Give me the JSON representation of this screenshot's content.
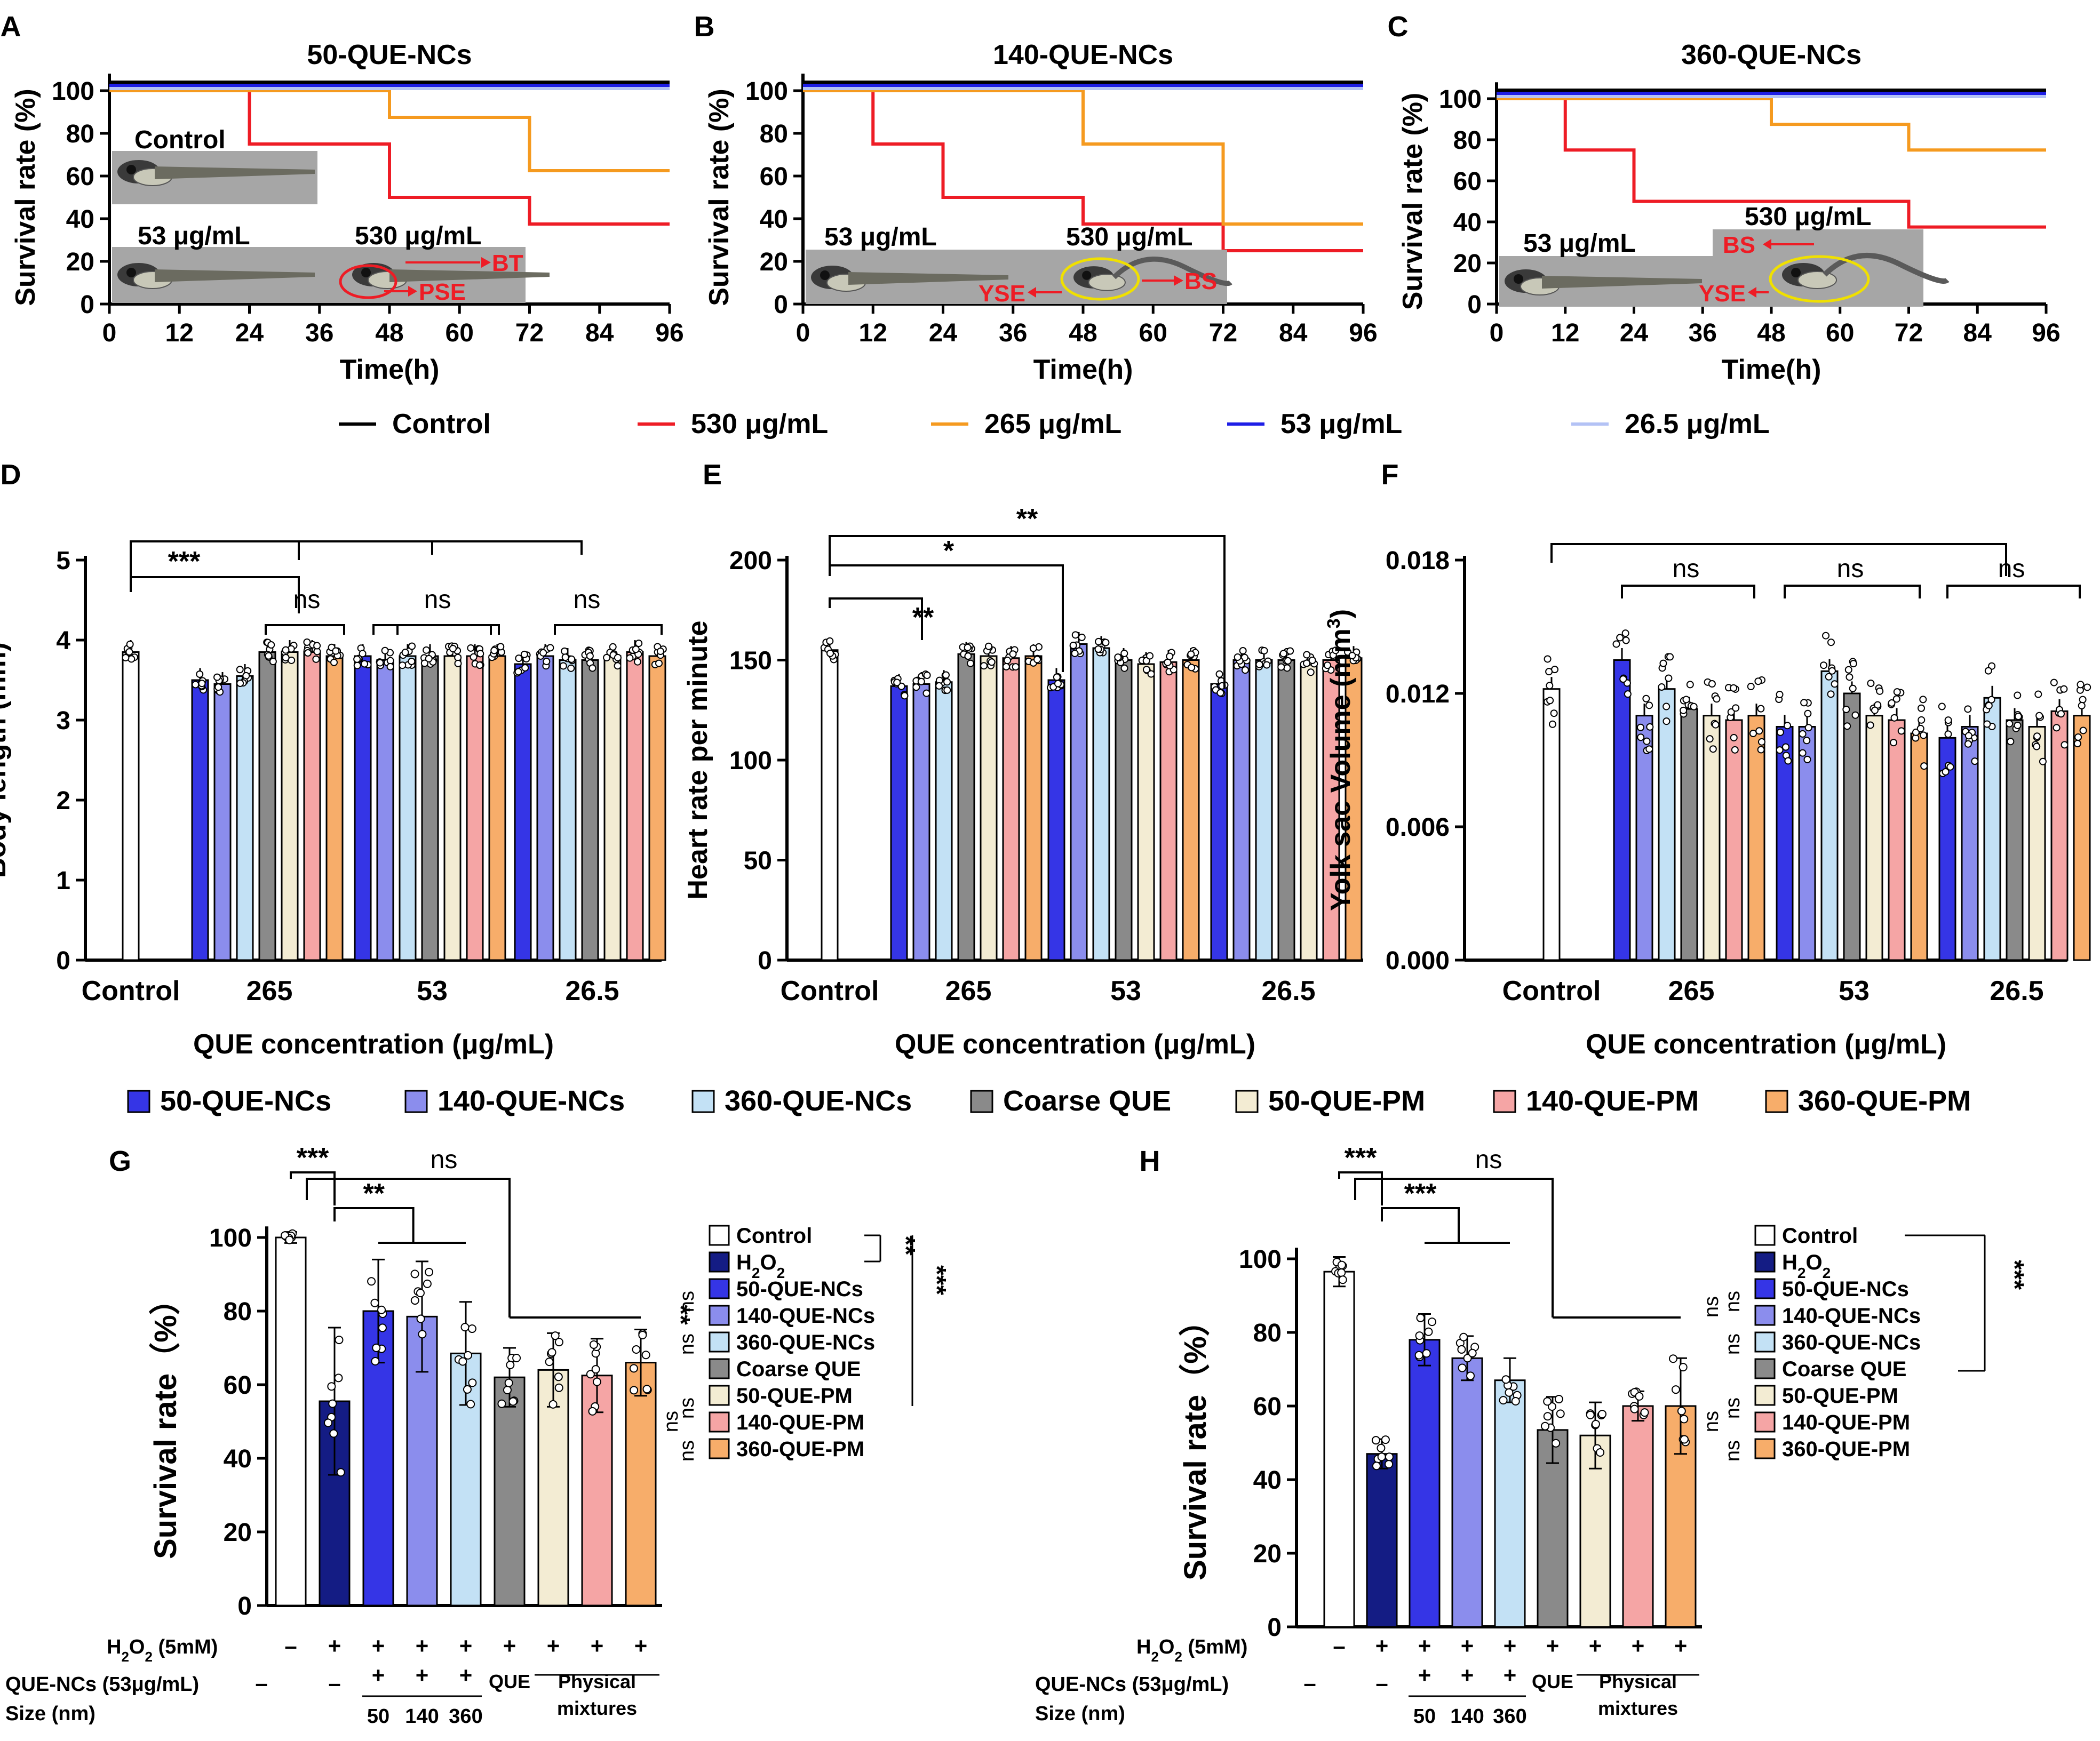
{
  "colors": {
    "control": "#ffffff",
    "c530": "#ee1c25",
    "c265": "#f59a1f",
    "c53": "#1e1ee6",
    "c26_5": "#b3c2f5",
    "NC50": "#3535e6",
    "NC140": "#8b8ded",
    "NC360": "#c3e1f5",
    "coarse": "#8a8a8a",
    "PM50": "#f3ecd3",
    "PM140": "#f5a5a5",
    "PM360": "#f7ad6a",
    "H2O2": "#141c84",
    "ann_red": "#ee1c25",
    "ellipse": "#f0e000",
    "photo_bg": "#a6a6a6",
    "axis": "#000000"
  },
  "survival_panels": [
    {
      "letter": "A",
      "title": "50-QUE-NCs",
      "xlabel": "Time(h)",
      "ylabel": "Survival rate (%)",
      "xticks": [
        "0",
        "12",
        "24",
        "36",
        "48",
        "60",
        "72",
        "84",
        "96"
      ],
      "yticks": [
        "0",
        "20",
        "40",
        "60",
        "80",
        "100"
      ],
      "photo_labels": [
        {
          "text": "Control"
        },
        {
          "text": "53 μg/mL"
        },
        {
          "text": "530 μg/mL"
        }
      ],
      "annotations": [
        {
          "text": "BT"
        },
        {
          "text": "PSE"
        }
      ]
    },
    {
      "letter": "B",
      "title": "140-QUE-NCs",
      "xlabel": "Time(h)",
      "ylabel": "Survival rate (%)",
      "xticks": [
        "0",
        "12",
        "24",
        "36",
        "48",
        "60",
        "72",
        "84",
        "96"
      ],
      "yticks": [
        "0",
        "20",
        "40",
        "60",
        "80",
        "100"
      ],
      "photo_labels": [
        {
          "text": "53 μg/mL"
        },
        {
          "text": "530 μg/mL"
        }
      ],
      "annotations": [
        {
          "text": "YSE"
        },
        {
          "text": "BS"
        }
      ]
    },
    {
      "letter": "C",
      "title": "360-QUE-NCs",
      "xlabel": "Time(h)",
      "ylabel": "Survival rate (%)",
      "xticks": [
        "0",
        "12",
        "24",
        "36",
        "48",
        "60",
        "72",
        "84",
        "96"
      ],
      "yticks": [
        "0",
        "20",
        "40",
        "60",
        "80",
        "100"
      ],
      "photo_labels": [
        {
          "text": "53 μg/mL"
        },
        {
          "text": "530 μg/mL"
        }
      ],
      "annotations": [
        {
          "text": "BS"
        },
        {
          "text": "YSE"
        }
      ]
    }
  ],
  "legend_top": [
    "Control",
    "530 μg/mL",
    "265 μg/mL",
    "53 μg/mL",
    "26.5 μg/mL"
  ],
  "bar_panels": [
    {
      "letter": "D",
      "ylabel": "Body length (mm)",
      "xlabel": "QUE concentration (μg/mL)",
      "groups": [
        "Control",
        "265",
        "53",
        "26.5"
      ],
      "yticks": [
        "0",
        "1",
        "2",
        "3",
        "4",
        "5"
      ],
      "sig": [
        "***",
        "ns",
        "ns",
        "ns"
      ]
    },
    {
      "letter": "E",
      "ylabel": "Heart rate per minute",
      "xlabel": "QUE concentration (μg/mL)",
      "groups": [
        "Control",
        "265",
        "53",
        "26.5"
      ],
      "yticks": [
        "0",
        "50",
        "100",
        "150",
        "200"
      ],
      "sig": [
        "**",
        "*",
        "**"
      ]
    },
    {
      "letter": "F",
      "ylabel": "Yolk sac Volume (mm",
      "ylabel_sup": "3",
      "ylabel_end": ")",
      "xlabel": "QUE concentration (μg/mL)",
      "groups": [
        "Control",
        "265",
        "53",
        "26.5"
      ],
      "yticks": [
        "0.000",
        "0.006",
        "0.012",
        "0.018"
      ],
      "sig": [
        "ns",
        "ns",
        "ns"
      ]
    }
  ],
  "legend_mid": [
    "50-QUE-NCs",
    "140-QUE-NCs",
    "360-QUE-NCs",
    "Coarse QUE",
    "50-QUE-PM",
    "140-QUE-PM",
    "360-QUE-PM"
  ],
  "h2o2_panels": [
    {
      "letter": "G",
      "ylabel": "Survival rate（%）",
      "yticks": [
        "0",
        "20",
        "40",
        "60",
        "80",
        "100"
      ],
      "sig": [
        "***",
        "**",
        "ns"
      ],
      "legend": [
        "Control",
        "H2O2",
        "50-QUE-NCs",
        "140-QUE-NCs",
        "360-QUE-NCs",
        "Coarse QUE",
        "50-QUE-PM",
        "140-QUE-PM",
        "360-QUE-PM"
      ],
      "legend_sig": [
        "**",
        "***",
        "**",
        "ns",
        "ns",
        "ns",
        "ns",
        "ns",
        "ns"
      ]
    },
    {
      "letter": "H",
      "ylabel": "Survival rate（%）",
      "yticks": [
        "0",
        "20",
        "40",
        "60",
        "80",
        "100"
      ],
      "sig": [
        "***",
        "***",
        "ns"
      ],
      "legend": [
        "Control",
        "H2O2",
        "50-QUE-NCs",
        "140-QUE-NCs",
        "360-QUE-NCs",
        "Coarse QUE",
        "50-QUE-PM",
        "140-QUE-PM",
        "360-QUE-PM"
      ],
      "legend_sig": [
        "***",
        "ns",
        "ns",
        "ns",
        "ns",
        "ns",
        "ns"
      ]
    }
  ],
  "h2o2_rows": {
    "label1": "H2O2 (5mM)",
    "label2": "QUE-NCs (53μg/mL)",
    "label3": "Size (nm)",
    "row1": [
      "–",
      "+",
      "+",
      "+",
      "+",
      "+",
      "+",
      "+",
      "+"
    ],
    "row2": [
      "–",
      "–",
      "+",
      "+",
      "+",
      "QUE",
      "Physical"
    ],
    "row3": [
      "50",
      "140",
      "360",
      "mixtures"
    ]
  },
  "chart_data": [
    {
      "type": "line",
      "panel": "A",
      "title": "50-QUE-NCs",
      "xlabel": "Time(h)",
      "ylabel": "Survival rate (%)",
      "xlim": [
        0,
        96
      ],
      "ylim": [
        0,
        100
      ],
      "series": [
        {
          "name": "Control",
          "x": [
            0,
            96
          ],
          "y": [
            100,
            100
          ]
        },
        {
          "name": "530 μg/mL",
          "x": [
            0,
            24,
            48,
            72,
            96
          ],
          "y": [
            100,
            75,
            50,
            37.5,
            37.5
          ]
        },
        {
          "name": "265 μg/mL",
          "x": [
            0,
            48,
            72,
            96
          ],
          "y": [
            100,
            87.5,
            62.5,
            62.5
          ]
        },
        {
          "name": "53 μg/mL",
          "x": [
            0,
            96
          ],
          "y": [
            100,
            100
          ]
        },
        {
          "name": "26.5 μg/mL",
          "x": [
            0,
            96
          ],
          "y": [
            100,
            100
          ]
        }
      ]
    },
    {
      "type": "line",
      "panel": "B",
      "title": "140-QUE-NCs",
      "xlabel": "Time(h)",
      "ylabel": "Survival rate (%)",
      "xlim": [
        0,
        96
      ],
      "ylim": [
        0,
        100
      ],
      "series": [
        {
          "name": "Control",
          "x": [
            0,
            96
          ],
          "y": [
            100,
            100
          ]
        },
        {
          "name": "530 μg/mL",
          "x": [
            0,
            12,
            24,
            48,
            72,
            96
          ],
          "y": [
            100,
            75,
            50,
            37.5,
            25,
            25
          ]
        },
        {
          "name": "265 μg/mL",
          "x": [
            0,
            48,
            72,
            96
          ],
          "y": [
            100,
            75,
            37.5,
            37.5
          ]
        },
        {
          "name": "53 μg/mL",
          "x": [
            0,
            96
          ],
          "y": [
            100,
            100
          ]
        },
        {
          "name": "26.5 μg/mL",
          "x": [
            0,
            96
          ],
          "y": [
            100,
            100
          ]
        }
      ]
    },
    {
      "type": "line",
      "panel": "C",
      "title": "360-QUE-NCs",
      "xlabel": "Time(h)",
      "ylabel": "Survival rate (%)",
      "xlim": [
        0,
        96
      ],
      "ylim": [
        0,
        100
      ],
      "series": [
        {
          "name": "Control",
          "x": [
            0,
            96
          ],
          "y": [
            100,
            100
          ]
        },
        {
          "name": "530 μg/mL",
          "x": [
            0,
            12,
            24,
            72,
            96
          ],
          "y": [
            100,
            75,
            50,
            37.5,
            37.5
          ]
        },
        {
          "name": "265 μg/mL",
          "x": [
            0,
            48,
            72,
            96
          ],
          "y": [
            100,
            87.5,
            75,
            75
          ]
        },
        {
          "name": "53 μg/mL",
          "x": [
            0,
            96
          ],
          "y": [
            100,
            100
          ]
        },
        {
          "name": "26.5 μg/mL",
          "x": [
            0,
            96
          ],
          "y": [
            100,
            100
          ]
        }
      ]
    },
    {
      "type": "bar",
      "panel": "D",
      "ylabel": "Body length (mm)",
      "xlabel": "QUE concentration (μg/mL)",
      "ylim": [
        0,
        5
      ],
      "control": 3.85,
      "categories": [
        "265",
        "53",
        "26.5"
      ],
      "series": [
        {
          "name": "50-QUE-NCs",
          "values": [
            3.5,
            3.8,
            3.7
          ]
        },
        {
          "name": "140-QUE-NCs",
          "values": [
            3.45,
            3.75,
            3.8
          ]
        },
        {
          "name": "360-QUE-NCs",
          "values": [
            3.55,
            3.8,
            3.75
          ]
        },
        {
          "name": "Coarse QUE",
          "values": [
            3.85,
            3.8,
            3.75
          ]
        },
        {
          "name": "50-QUE-PM",
          "values": [
            3.85,
            3.8,
            3.8
          ]
        },
        {
          "name": "140-QUE-PM",
          "values": [
            3.85,
            3.8,
            3.85
          ]
        },
        {
          "name": "360-QUE-PM",
          "values": [
            3.8,
            3.8,
            3.8
          ]
        }
      ]
    },
    {
      "type": "bar",
      "panel": "E",
      "ylabel": "Heart rate per minute",
      "xlabel": "QUE concentration (μg/mL)",
      "ylim": [
        0,
        200
      ],
      "control": 155,
      "categories": [
        "265",
        "53",
        "26.5"
      ],
      "series": [
        {
          "name": "50-QUE-NCs",
          "values": [
            137,
            140,
            138
          ]
        },
        {
          "name": "140-QUE-NCs",
          "values": [
            138,
            158,
            150
          ]
        },
        {
          "name": "360-QUE-NCs",
          "values": [
            139,
            156,
            150
          ]
        },
        {
          "name": "Coarse QUE",
          "values": [
            153,
            150,
            150
          ]
        },
        {
          "name": "50-QUE-PM",
          "values": [
            152,
            148,
            148
          ]
        },
        {
          "name": "140-QUE-PM",
          "values": [
            151,
            149,
            150
          ]
        },
        {
          "name": "360-QUE-PM",
          "values": [
            152,
            150,
            151
          ]
        }
      ]
    },
    {
      "type": "bar",
      "panel": "F",
      "ylabel": "Yolk sac Volume (mm3)",
      "xlabel": "QUE concentration (μg/mL)",
      "ylim": [
        0,
        0.018
      ],
      "control": 0.0122,
      "categories": [
        "265",
        "53",
        "26.5"
      ],
      "series": [
        {
          "name": "50-QUE-NCs",
          "values": [
            0.0135,
            0.0105,
            0.01
          ]
        },
        {
          "name": "140-QUE-NCs",
          "values": [
            0.011,
            0.0105,
            0.0105
          ]
        },
        {
          "name": "360-QUE-NCs",
          "values": [
            0.0122,
            0.013,
            0.0118
          ]
        },
        {
          "name": "Coarse QUE",
          "values": [
            0.0113,
            0.012,
            0.0108
          ]
        },
        {
          "name": "50-QUE-PM",
          "values": [
            0.011,
            0.011,
            0.0105
          ]
        },
        {
          "name": "140-QUE-PM",
          "values": [
            0.0108,
            0.0108,
            0.0112
          ]
        },
        {
          "name": "360-QUE-PM",
          "values": [
            0.011,
            0.0102,
            0.011
          ]
        }
      ]
    },
    {
      "type": "bar",
      "panel": "G",
      "ylabel": "Survival rate (%)",
      "ylim": [
        0,
        100
      ],
      "categories": [
        "Control",
        "H2O2",
        "50-QUE-NCs",
        "140-QUE-NCs",
        "360-QUE-NCs",
        "Coarse QUE",
        "50-QUE-PM",
        "140-QUE-PM",
        "360-QUE-PM"
      ],
      "values": [
        100,
        55.5,
        80,
        78.5,
        68.5,
        62,
        64,
        62.5,
        66
      ],
      "errors": [
        1.5,
        20,
        14,
        15,
        14,
        8,
        10,
        10,
        9
      ]
    },
    {
      "type": "bar",
      "panel": "H",
      "ylabel": "Survival rate (%)",
      "ylim": [
        0,
        100
      ],
      "categories": [
        "Control",
        "H2O2",
        "50-QUE-NCs",
        "140-QUE-NCs",
        "360-QUE-NCs",
        "Coarse QUE",
        "50-QUE-PM",
        "140-QUE-PM",
        "360-QUE-PM"
      ],
      "values": [
        96.5,
        47,
        78,
        73,
        67,
        53.5,
        52,
        60,
        60
      ],
      "errors": [
        4,
        4,
        7,
        6,
        6,
        9,
        9,
        4,
        13
      ]
    }
  ]
}
